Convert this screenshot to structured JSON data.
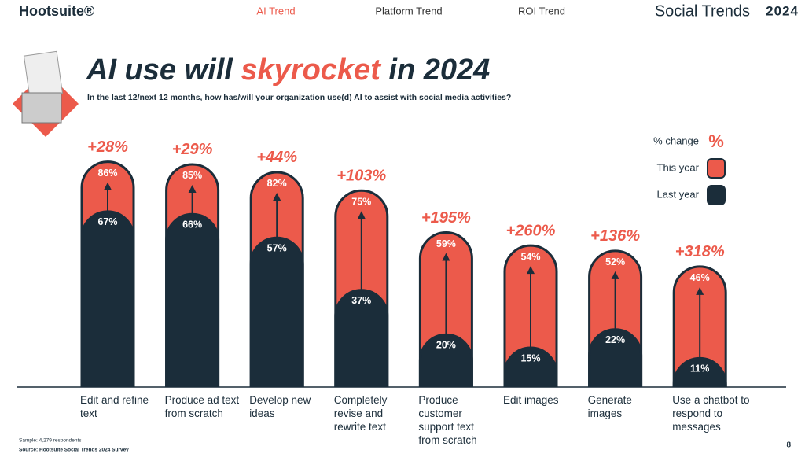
{
  "header": {
    "brand": "Hootsuite®",
    "nav": [
      "AI Trend",
      "Platform Trend",
      "ROI Trend"
    ],
    "report": "Social Trends",
    "report_year": "2024"
  },
  "title_parts": [
    "AI use will ",
    "skyrocket",
    " in 2024"
  ],
  "subtitle": "In the last 12/next 12 months, how has/will your organization use(d) AI to assist with social media activities?",
  "chart_data": {
    "type": "bar",
    "categories": [
      "Edit and refine text",
      "Produce ad text from scratch",
      "Develop new ideas",
      "Completely revise and rewrite text",
      "Produce customer support text from scratch",
      "Edit images",
      "Generate images",
      "Use a chatbot to respond to messages"
    ],
    "series": [
      {
        "name": "This year",
        "color": "#ec5a4b",
        "values": [
          86,
          85,
          82,
          75,
          59,
          54,
          52,
          46
        ],
        "value_labels": [
          "86%",
          "85%",
          "82%",
          "75%",
          "59%",
          "54%",
          "52%",
          "46%"
        ]
      },
      {
        "name": "Last year",
        "color": "#1b2d3a",
        "values": [
          67,
          66,
          57,
          37,
          20,
          15,
          22,
          11
        ],
        "value_labels": [
          "67%",
          "66%",
          "57%",
          "37%",
          "20%",
          "15%",
          "22%",
          "11%"
        ]
      }
    ],
    "change": {
      "name": "% change",
      "symbol": "%",
      "color": "#ec5a4b",
      "values": [
        28,
        29,
        44,
        103,
        195,
        260,
        136,
        318
      ],
      "value_labels": [
        "+28%",
        "+29%",
        "+44%",
        "+103%",
        "+195%",
        "+260%",
        "+136%",
        "+318%"
      ]
    }
  },
  "footer": {
    "sample": "Sample: 4,279 respondents",
    "source": "Source: Hootsuite Social Trends 2024 Survey",
    "page": "8"
  }
}
